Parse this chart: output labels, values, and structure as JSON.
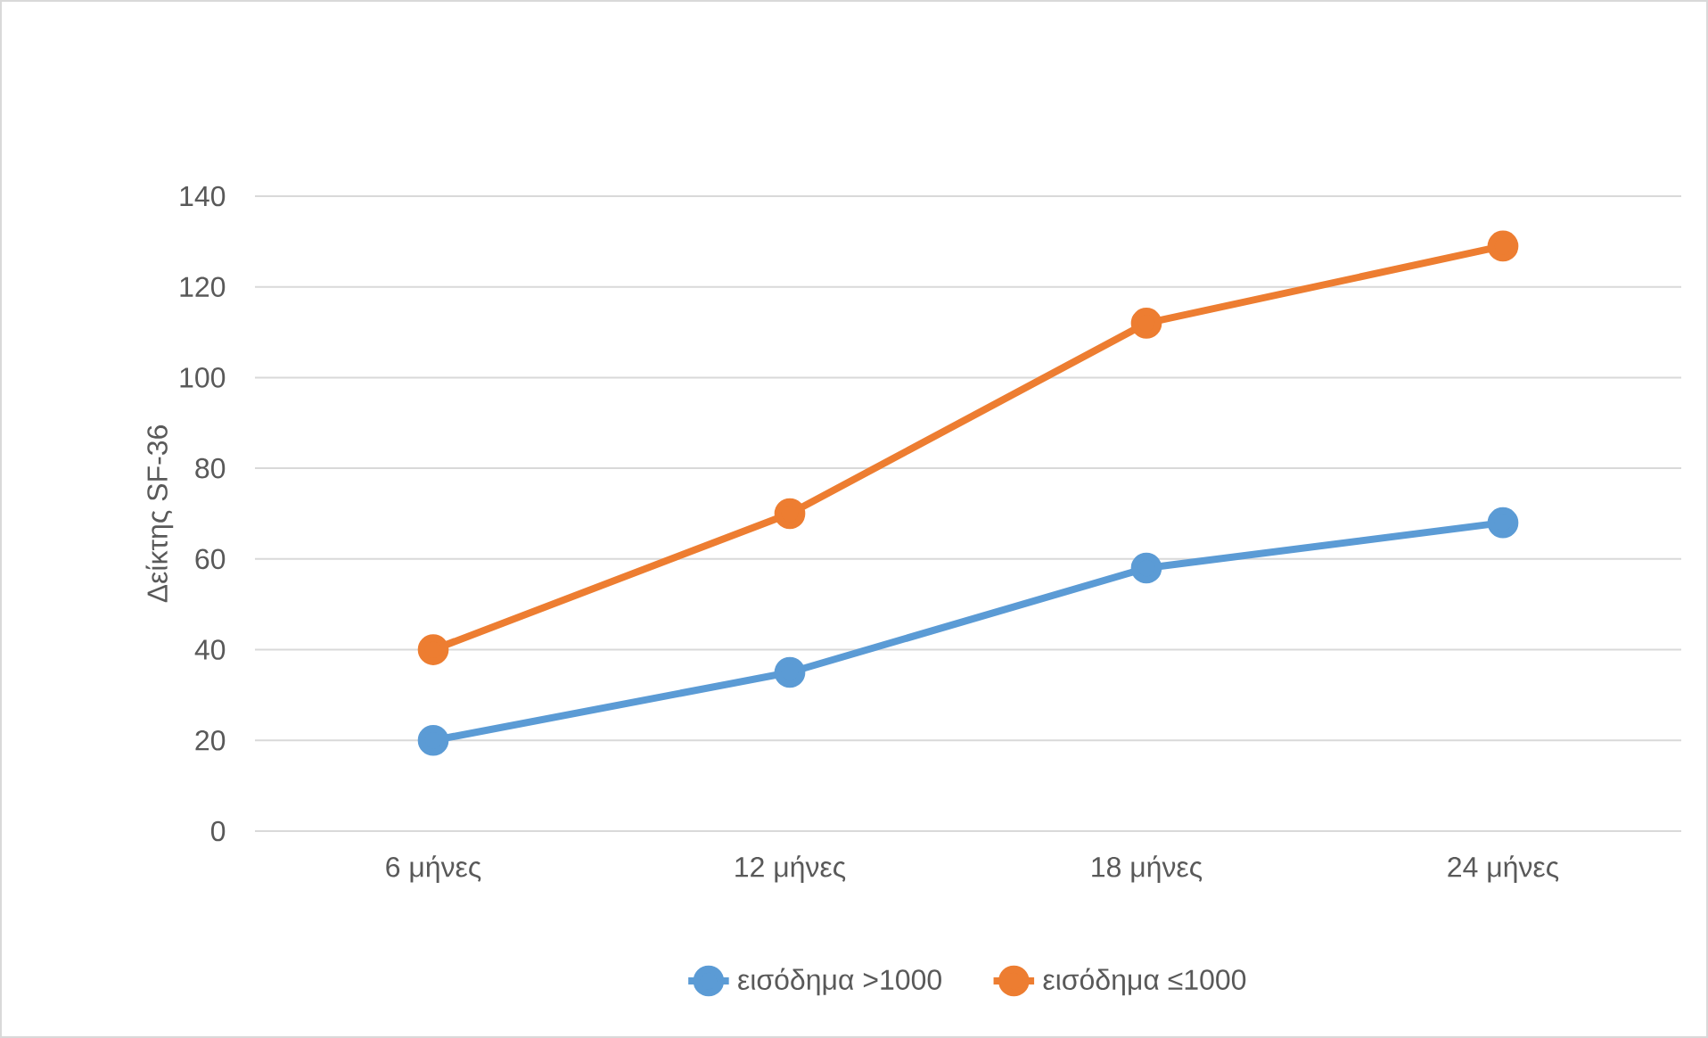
{
  "chart_data": {
    "type": "line",
    "ylabel": "Δείκτης SF-36",
    "categories": [
      "6 μήνες",
      "12 μήνες",
      "18 μήνες",
      "24 μήνες"
    ],
    "series": [
      {
        "name": "εισόδημα >1000",
        "color": "#5b9bd5",
        "values": [
          20,
          35,
          58,
          68
        ]
      },
      {
        "name": "εισόδημα ≤1000",
        "color": "#ed7d31",
        "values": [
          40,
          70,
          112,
          129
        ]
      }
    ],
    "ylim": [
      0,
      140
    ],
    "yticks": [
      0,
      20,
      40,
      60,
      80,
      100,
      120,
      140
    ],
    "grid": "y",
    "legend": "bottom",
    "marker": "circle",
    "line_style": "solid"
  }
}
